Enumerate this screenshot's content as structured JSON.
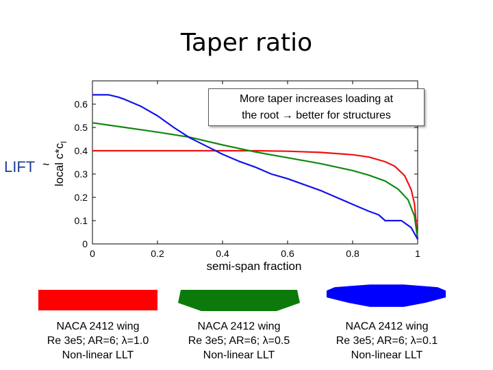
{
  "slide": {
    "title": "Taper ratio",
    "lift_label": "LIFT",
    "tilde": "~",
    "annotation_line1": "More taper increases loading at",
    "annotation_line2": "the root → better for structures"
  },
  "colors": {
    "red": "#ee1111",
    "green": "#118811",
    "blue": "#1111ee"
  },
  "wings": [
    {
      "line1": "NACA 2412 wing",
      "line2": "Re 3e5; AR=6; λ=1.0",
      "line3": "Non-linear LLT",
      "color": "#ff0000"
    },
    {
      "line1": "NACA 2412 wing",
      "line2": "Re 3e5; AR=6; λ=0.5",
      "line3": "Non-linear LLT",
      "color": "#0b7a0b"
    },
    {
      "line1": "NACA 2412 wing",
      "line2": "Re 3e5; AR=6; λ=0.1",
      "line3": "Non-linear LLT",
      "color": "#0000ff"
    }
  ],
  "chart_data": {
    "type": "line",
    "xlabel": "semi-span fraction",
    "ylabel": "local c*c",
    "ylabel_subscript": "l",
    "xlim": [
      0,
      1
    ],
    "ylim": [
      0,
      0.7
    ],
    "xticks": [
      0,
      0.2,
      0.4,
      0.6,
      0.8,
      1
    ],
    "xtick_labels": [
      "0",
      "0.2",
      "0.4",
      "0.6",
      "0.8",
      "1"
    ],
    "yticks": [
      0,
      0.1,
      0.2,
      0.3,
      0.4,
      0.5,
      0.6
    ],
    "ytick_labels": [
      "0",
      "0.1",
      "0.2",
      "0.3",
      "0.4",
      "0.5",
      "0.6"
    ],
    "series": [
      {
        "name": "λ=1.0",
        "color": "#ee1111",
        "x": [
          0,
          0.1,
          0.2,
          0.3,
          0.4,
          0.5,
          0.6,
          0.7,
          0.8,
          0.85,
          0.9,
          0.93,
          0.96,
          0.98,
          0.99,
          1.0
        ],
        "y": [
          0.4,
          0.4,
          0.4,
          0.4,
          0.4,
          0.4,
          0.398,
          0.393,
          0.383,
          0.373,
          0.353,
          0.333,
          0.293,
          0.233,
          0.173,
          0.02
        ]
      },
      {
        "name": "λ=0.5",
        "color": "#118811",
        "x": [
          0,
          0.05,
          0.1,
          0.2,
          0.3,
          0.4,
          0.5,
          0.6,
          0.7,
          0.8,
          0.85,
          0.9,
          0.94,
          0.97,
          0.99,
          1.0
        ],
        "y": [
          0.52,
          0.51,
          0.5,
          0.48,
          0.458,
          0.425,
          0.395,
          0.37,
          0.345,
          0.315,
          0.295,
          0.27,
          0.235,
          0.19,
          0.12,
          0.02
        ]
      },
      {
        "name": "λ=0.1",
        "color": "#1111ee",
        "x": [
          0,
          0.02,
          0.05,
          0.08,
          0.1,
          0.15,
          0.2,
          0.25,
          0.3,
          0.35,
          0.4,
          0.45,
          0.5,
          0.55,
          0.6,
          0.65,
          0.7,
          0.75,
          0.8,
          0.85,
          0.88,
          0.9,
          0.95,
          0.98,
          1.0
        ],
        "y": [
          0.64,
          0.64,
          0.64,
          0.63,
          0.62,
          0.59,
          0.55,
          0.5,
          0.455,
          0.42,
          0.385,
          0.355,
          0.33,
          0.3,
          0.28,
          0.255,
          0.23,
          0.2,
          0.17,
          0.14,
          0.125,
          0.1,
          0.1,
          0.07,
          0.02
        ]
      }
    ]
  }
}
